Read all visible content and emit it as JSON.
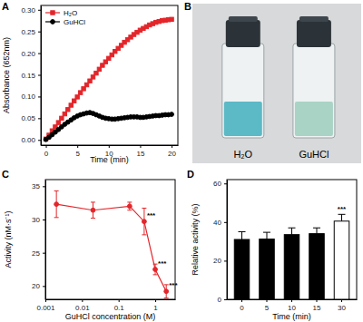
{
  "chart_data": [
    {
      "type": "line",
      "title": "A",
      "x_label": "Time (min)",
      "y_label": "Absorbance (652nm)",
      "x": [
        0,
        0.5,
        1,
        1.5,
        2,
        2.5,
        3,
        3.5,
        4,
        4.5,
        5,
        5.5,
        6,
        6.5,
        7,
        7.5,
        8,
        8.5,
        9,
        9.5,
        10,
        10.5,
        11,
        11.5,
        12,
        12.5,
        13,
        13.5,
        14,
        14.5,
        15,
        15.5,
        16,
        16.5,
        17,
        17.5,
        18,
        18.5,
        19,
        19.5,
        20
      ],
      "xlim": [
        -0.8,
        21
      ],
      "xticks": [
        0,
        5,
        10,
        15,
        20
      ],
      "ylim": [
        -0.012,
        0.31
      ],
      "yticks": [
        {
          "value": 0,
          "label": "0.00"
        },
        0.05,
        {
          "value": 0.1,
          "label": "0.10"
        },
        0.15,
        {
          "value": 0.2,
          "label": "0.20"
        },
        0.25,
        {
          "value": 0.3,
          "label": "0.30"
        }
      ],
      "legend": "upper left",
      "series": [
        {
          "name": "H₂O",
          "color": "#e3262b",
          "marker": "square",
          "values": [
            0.002,
            0.011,
            0.021,
            0.03,
            0.04,
            0.05,
            0.06,
            0.07,
            0.08,
            0.09,
            0.099,
            0.109,
            0.118,
            0.127,
            0.136,
            0.145,
            0.154,
            0.163,
            0.172,
            0.18,
            0.188,
            0.196,
            0.204,
            0.211,
            0.218,
            0.225,
            0.231,
            0.237,
            0.243,
            0.248,
            0.253,
            0.257,
            0.261,
            0.265,
            0.268,
            0.271,
            0.273,
            0.275,
            0.276,
            0.277,
            0.278
          ]
        },
        {
          "name": "GuHCl",
          "color": "#000000",
          "marker": "circle",
          "values": [
            0.001,
            0.006,
            0.012,
            0.018,
            0.024,
            0.03,
            0.036,
            0.041,
            0.046,
            0.051,
            0.055,
            0.058,
            0.06,
            0.062,
            0.063,
            0.061,
            0.058,
            0.055,
            0.052,
            0.05,
            0.049,
            0.048,
            0.048,
            0.049,
            0.05,
            0.051,
            0.052,
            0.053,
            0.053,
            0.053,
            0.052,
            0.052,
            0.053,
            0.054,
            0.055,
            0.056,
            0.056,
            0.057,
            0.058,
            0.058,
            0.059
          ]
        }
      ]
    },
    {
      "type": "image",
      "title": "B",
      "annotations": [
        "H₂O",
        "GuHCl"
      ]
    },
    {
      "type": "line",
      "title": "C",
      "log": "x",
      "x_label": "GuHCl concentration (M)",
      "y_label": "Activity (nM·s⁻¹)",
      "x": [
        0.002,
        0.02,
        0.2,
        0.5,
        1,
        2
      ],
      "xlim": [
        0.001,
        3.5
      ],
      "xticks": [
        0.001,
        0.01,
        0.1,
        1
      ],
      "ylim": [
        18,
        36
      ],
      "yticks": [
        20,
        25,
        30,
        35
      ],
      "series": [
        {
          "color": "#e3262b",
          "marker": "circle",
          "values": [
            32.3,
            31.4,
            32.0,
            29.7,
            22.5,
            19.2
          ],
          "errors": [
            2.0,
            1.2,
            0.6,
            2.0,
            0.8,
            1.0
          ]
        }
      ],
      "annotations": [
        {
          "text": "***",
          "x": 0.5
        },
        {
          "text": "***",
          "x": 1
        },
        {
          "text": "***",
          "x": 2
        }
      ]
    },
    {
      "type": "bar",
      "title": "D",
      "x_label": "Time (min)",
      "y_label": "Relative activity (%)",
      "categories": [
        "0",
        "5",
        "10",
        "15",
        "30"
      ],
      "values": [
        31,
        31.2,
        33.5,
        34,
        40.5
      ],
      "errors": [
        4,
        3.5,
        3.5,
        3,
        3.5
      ],
      "colors": [
        "#000000",
        "#000000",
        "#000000",
        "#000000",
        "#ffffff"
      ],
      "ylim": [
        0,
        62
      ],
      "yticks": [
        0,
        20,
        40,
        60
      ],
      "annotations": [
        {
          "text": "***",
          "category": "30"
        }
      ]
    }
  ]
}
